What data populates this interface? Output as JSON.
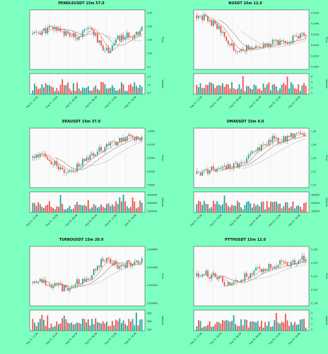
{
  "colors": {
    "up": "#26a69a",
    "down": "#ef5350",
    "plot_bg": "#fafafa",
    "page_bg": "#7dffc0",
    "ma1": "#e07b39",
    "ma2": "#888888",
    "ma3": "#c0c0c0"
  },
  "chart_data": [
    {
      "type": "candlestick",
      "title": "PENDLEUSDT 15m 57.0",
      "ylabel": "Price",
      "vlabel": "Volume",
      "x": [
        "Aug 21, 12:00",
        "Aug 21, 18:00",
        "Aug 22, 00:00",
        "Aug 22, 06:00",
        "Aug 22, 12:00",
        "Aug 22, 18:00"
      ],
      "yticks": [
        "3.3",
        "3.40",
        "3.45",
        "3.50",
        "3.55"
      ],
      "vticks": [
        "0.5",
        "1.0",
        "1.5"
      ],
      "ylim": [
        3.3,
        3.56
      ],
      "seed": 11,
      "trend": [
        0.6,
        0.65,
        0.7,
        0.72,
        0.6,
        0.55,
        0.62,
        0.7,
        0.4,
        0.3,
        0.5,
        0.55,
        0.6,
        0.7
      ]
    },
    {
      "type": "candlestick",
      "title": "NUSDT 15m 12.0",
      "ylabel": "Price",
      "vlabel": "Volume",
      "x": [
        "Aug 21, 12:00",
        "Aug 21, 18:00",
        "Aug 22, 00:00",
        "Aug 22, 06:00",
        "Aug 22, 12:00",
        "Aug 22, 18:00"
      ],
      "yticks": [
        "0.0300",
        "0.0310",
        "0.0320",
        "0.0330",
        "0.0340",
        "0.0350"
      ],
      "vticks": [
        "0",
        "2",
        "4",
        "6"
      ],
      "ylim": [
        0.0295,
        0.0352
      ],
      "seed": 23,
      "trend": [
        0.95,
        0.9,
        0.8,
        0.65,
        0.4,
        0.3,
        0.35,
        0.4,
        0.42,
        0.45,
        0.45,
        0.5,
        0.55,
        0.6
      ]
    },
    {
      "type": "candlestick",
      "title": "ERAUSDT 15m 37.0",
      "ylabel": "Price",
      "vlabel": "Volume",
      "x": [
        "Aug 21, 12:00",
        "Aug 21, 18:00",
        "Aug 22, 00:00",
        "Aug 22, 06:00",
        "Aug 22, 12:00",
        "Aug 22, 18:00"
      ],
      "yticks": [
        "0.9000",
        "0.9250",
        "0.9500",
        "0.9750",
        "1.0000"
      ],
      "vticks": [
        "1000000",
        "2000000",
        "3000000"
      ],
      "ylim": [
        0.89,
        1.01
      ],
      "seed": 37,
      "trend": [
        0.5,
        0.55,
        0.45,
        0.35,
        0.25,
        0.3,
        0.45,
        0.55,
        0.65,
        0.75,
        0.8,
        0.85,
        0.9,
        0.88
      ]
    },
    {
      "type": "candlestick",
      "title": "UMAUSDT 15m 4.0",
      "ylabel": "Price",
      "vlabel": "Volume",
      "x": [
        "Aug 21, 12:00",
        "Aug 21, 18:00",
        "Aug 22, 00:00",
        "Aug 22, 06:00",
        "Aug 22, 12:00",
        "Aug 22, 18:00"
      ],
      "yticks": [
        "1.20",
        "1.22",
        "1.24",
        "1.26",
        "1.28"
      ],
      "vticks": [
        "100000",
        "200000",
        "300000"
      ],
      "ylim": [
        1.19,
        1.29
      ],
      "seed": 41,
      "trend": [
        0.2,
        0.25,
        0.3,
        0.28,
        0.35,
        0.4,
        0.5,
        0.6,
        0.75,
        0.85,
        0.8,
        0.9,
        0.95,
        0.92
      ]
    },
    {
      "type": "candlestick",
      "title": "TURBOUSDT 15m 20.0",
      "ylabel": "Price",
      "vlabel": "Volume",
      "x": [
        "Aug 21, 12:00",
        "Aug 21, 18:00",
        "Aug 22, 00:00",
        "Aug 22, 06:00",
        "Aug 22, 12:00",
        "Aug 22, 18:00"
      ],
      "yticks": [
        "0.004000",
        "0.004200",
        "0.004400",
        "0.004600"
      ],
      "vticks": [
        "1e8",
        "2e8",
        "3e8"
      ],
      "ylim": [
        0.0039,
        0.0047
      ],
      "seed": 53,
      "trend": [
        0.4,
        0.45,
        0.35,
        0.3,
        0.25,
        0.35,
        0.45,
        0.5,
        0.75,
        0.8,
        0.7,
        0.72,
        0.75,
        0.78
      ]
    },
    {
      "type": "candlestick",
      "title": "PYTHUSDT 15m 12.0",
      "ylabel": "Price",
      "vlabel": "Volume",
      "x": [
        "Aug 21, 12:00",
        "Aug 21, 18:00",
        "Aug 22, 00:00",
        "Aug 22, 06:00",
        "Aug 22, 12:00",
        "Aug 22, 18:00"
      ],
      "yticks": [
        "0.118",
        "0.120",
        "0.122",
        "0.124",
        "0.126"
      ],
      "vticks": [
        "0",
        "1",
        "2",
        "3"
      ],
      "ylim": [
        0.117,
        0.127
      ],
      "seed": 67,
      "trend": [
        0.5,
        0.55,
        0.5,
        0.4,
        0.3,
        0.45,
        0.5,
        0.6,
        0.65,
        0.7,
        0.75,
        0.72,
        0.8,
        0.85
      ]
    }
  ]
}
